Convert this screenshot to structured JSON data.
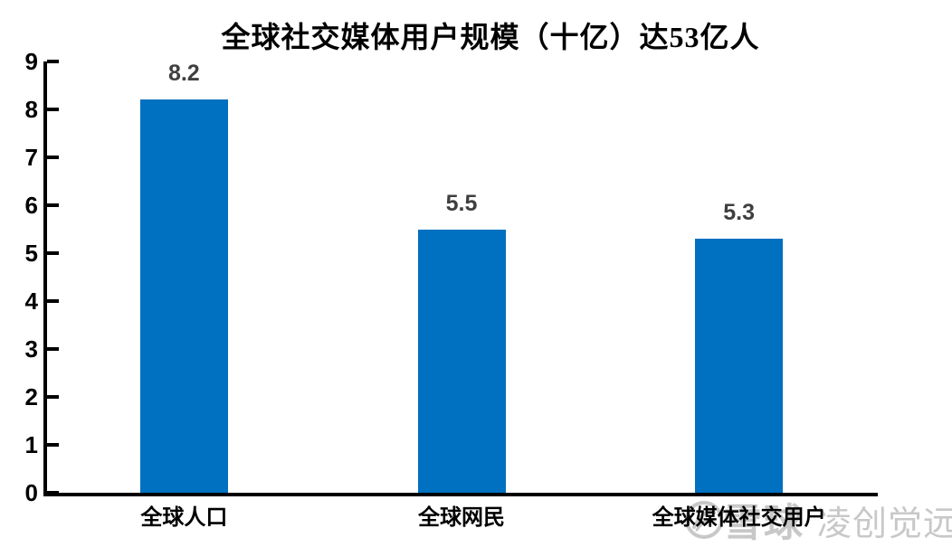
{
  "title": "全球社交媒体用户规模（十亿）达53亿人",
  "chart_data": {
    "type": "bar",
    "title": "全球社交媒体用户规模（十亿）达53亿人",
    "categories": [
      "全球人口",
      "全球网民",
      "全球媒体社交用户"
    ],
    "values": [
      8.2,
      5.5,
      5.3
    ],
    "value_labels": [
      "8.2",
      "5.5",
      "5.3"
    ],
    "xlabel": "",
    "ylabel": "",
    "ylim": [
      0,
      9
    ],
    "yticks": [
      0,
      1,
      2,
      3,
      4,
      5,
      6,
      7,
      8,
      9
    ],
    "grid": false,
    "legend": "none",
    "bar_color": "#0070C0",
    "value_label_color": "#3f3f3f",
    "axis_color": "#000000"
  },
  "watermark": {
    "logo_icon": "xueqiu-logo-icon",
    "brand": "雪球",
    "account": "凌创觉远",
    "color": "#c8c8c8"
  }
}
